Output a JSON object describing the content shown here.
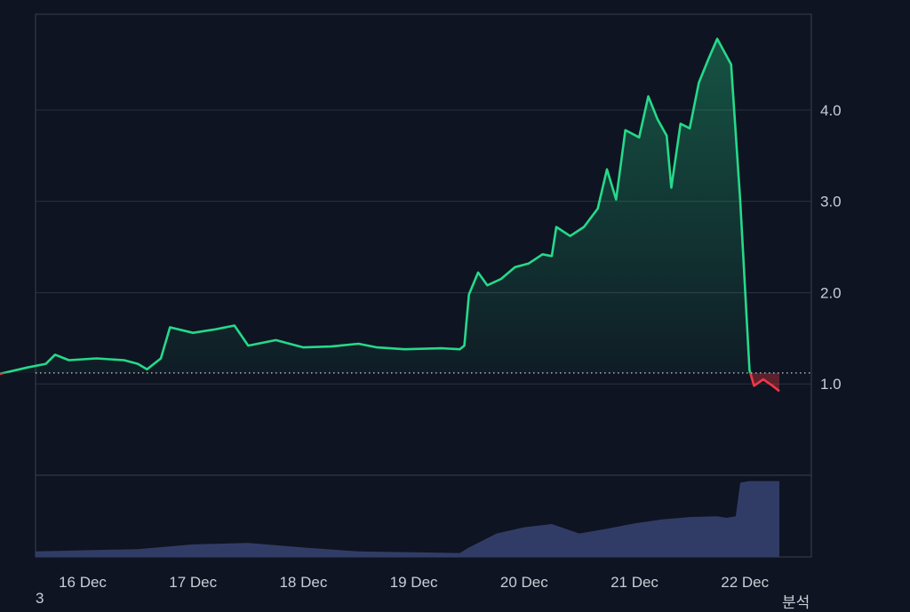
{
  "chart_data": {
    "type": "area",
    "title": "",
    "xlabel": "",
    "ylabel": "",
    "x_ticks": [
      "16 Dec",
      "17 Dec",
      "18 Dec",
      "19 Dec",
      "20 Dec",
      "21 Dec",
      "22 Dec"
    ],
    "y_ticks": [
      "1.0",
      "2.0",
      "3.0",
      "4.0"
    ],
    "ylim": [
      0,
      5.05
    ],
    "xlim": [
      "2023-12-15 13:00",
      "2023-12-22 19:30"
    ],
    "baseline": 1.12,
    "grid": "horizontal",
    "colors": {
      "up": "#26d98a",
      "down": "#f23645",
      "volume": "#343e6a",
      "background": "#0e1421"
    },
    "series": [
      {
        "values": [
          [
            "2023-12-15 13:00",
            1.12
          ],
          [
            "2023-12-15 18:00",
            1.11
          ],
          [
            "2023-12-16 00:00",
            1.18
          ],
          [
            "2023-12-16 04:00",
            1.22
          ],
          [
            "2023-12-16 06:00",
            1.32
          ],
          [
            "2023-12-16 09:00",
            1.26
          ],
          [
            "2023-12-16 15:00",
            1.28
          ],
          [
            "2023-12-16 21:00",
            1.26
          ],
          [
            "2023-12-17 00:00",
            1.22
          ],
          [
            "2023-12-17 02:00",
            1.16
          ],
          [
            "2023-12-17 05:00",
            1.28
          ],
          [
            "2023-12-17 07:00",
            1.62
          ],
          [
            "2023-12-17 12:00",
            1.56
          ],
          [
            "2023-12-17 17:00",
            1.6
          ],
          [
            "2023-12-17 21:00",
            1.64
          ],
          [
            "2023-12-18 00:00",
            1.42
          ],
          [
            "2023-12-18 06:00",
            1.48
          ],
          [
            "2023-12-18 12:00",
            1.4
          ],
          [
            "2023-12-18 18:00",
            1.41
          ],
          [
            "2023-12-19 00:00",
            1.44
          ],
          [
            "2023-12-19 04:00",
            1.4
          ],
          [
            "2023-12-19 10:00",
            1.38
          ],
          [
            "2023-12-19 18:00",
            1.39
          ],
          [
            "2023-12-19 22:00",
            1.38
          ],
          [
            "2023-12-19 23:00",
            1.42
          ],
          [
            "2023-12-20 00:00",
            1.98
          ],
          [
            "2023-12-20 02:00",
            2.22
          ],
          [
            "2023-12-20 04:00",
            2.08
          ],
          [
            "2023-12-20 07:00",
            2.15
          ],
          [
            "2023-12-20 10:00",
            2.28
          ],
          [
            "2023-12-20 13:00",
            2.32
          ],
          [
            "2023-12-20 16:00",
            2.42
          ],
          [
            "2023-12-20 18:00",
            2.4
          ],
          [
            "2023-12-20 19:00",
            2.72
          ],
          [
            "2023-12-20 22:00",
            2.62
          ],
          [
            "2023-12-21 01:00",
            2.72
          ],
          [
            "2023-12-21 04:00",
            2.92
          ],
          [
            "2023-12-21 06:00",
            3.35
          ],
          [
            "2023-12-21 08:00",
            3.02
          ],
          [
            "2023-12-21 10:00",
            3.78
          ],
          [
            "2023-12-21 13:00",
            3.7
          ],
          [
            "2023-12-21 15:00",
            4.15
          ],
          [
            "2023-12-21 17:00",
            3.9
          ],
          [
            "2023-12-21 19:00",
            3.72
          ],
          [
            "2023-12-21 20:00",
            3.15
          ],
          [
            "2023-12-21 22:00",
            3.85
          ],
          [
            "2023-12-22 00:00",
            3.8
          ],
          [
            "2023-12-22 02:00",
            4.3
          ],
          [
            "2023-12-22 04:00",
            4.55
          ],
          [
            "2023-12-22 06:00",
            4.78
          ],
          [
            "2023-12-22 09:00",
            4.5
          ],
          [
            "2023-12-22 11:00",
            3.0
          ],
          [
            "2023-12-22 13:00",
            1.15
          ],
          [
            "2023-12-22 14:00",
            0.98
          ],
          [
            "2023-12-22 16:00",
            1.05
          ],
          [
            "2023-12-22 18:00",
            0.98
          ],
          [
            "2023-12-22 19:30",
            0.92
          ]
        ]
      },
      {
        "name": "",
        "type": "area",
        "values": [
          [
            "2023-12-15 13:00",
            0.08
          ],
          [
            "2023-12-16 00:00",
            0.07
          ],
          [
            "2023-12-17 00:00",
            0.1
          ],
          [
            "2023-12-17 12:00",
            0.16
          ],
          [
            "2023-12-18 00:00",
            0.18
          ],
          [
            "2023-12-18 12:00",
            0.12
          ],
          [
            "2023-12-19 00:00",
            0.07
          ],
          [
            "2023-12-19 22:00",
            0.05
          ],
          [
            "2023-12-20 00:00",
            0.12
          ],
          [
            "2023-12-20 06:00",
            0.3
          ],
          [
            "2023-12-20 12:00",
            0.38
          ],
          [
            "2023-12-20 18:00",
            0.42
          ],
          [
            "2023-12-21 00:00",
            0.3
          ],
          [
            "2023-12-21 06:00",
            0.36
          ],
          [
            "2023-12-21 12:00",
            0.43
          ],
          [
            "2023-12-21 18:00",
            0.48
          ],
          [
            "2023-12-22 00:00",
            0.51
          ],
          [
            "2023-12-22 06:00",
            0.52
          ],
          [
            "2023-12-22 08:00",
            0.5
          ],
          [
            "2023-12-22 10:00",
            0.52
          ],
          [
            "2023-12-22 11:00",
            0.95
          ],
          [
            "2023-12-22 13:00",
            0.97
          ],
          [
            "2023-12-22 19:30",
            0.97
          ]
        ]
      }
    ]
  },
  "footer": {
    "left_text": "3",
    "right_text": "분석"
  }
}
